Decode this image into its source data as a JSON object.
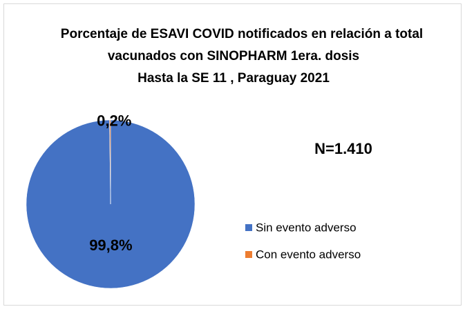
{
  "chart_data": {
    "type": "pie",
    "title": [
      "Porcentaje de ESAVI COVID notificados en relación a total",
      "vacunados con SINOPHARM 1era. dosis",
      "Hasta la SE 11 , Paraguay 2021"
    ],
    "annotation": "N=1.410",
    "categories": [
      "Sin evento adverso",
      "Con evento adverso"
    ],
    "values": [
      99.8,
      0.2
    ],
    "value_labels": [
      "99,8%",
      "0,2%"
    ],
    "colors": [
      "#4472c4",
      "#ed7d31"
    ],
    "legend": "right"
  }
}
